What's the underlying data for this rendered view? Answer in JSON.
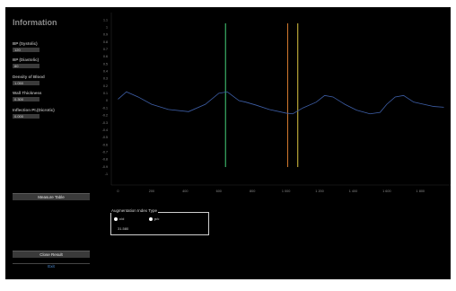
{
  "sidebar": {
    "title": "Information",
    "fields": [
      {
        "label": "BP (Systolic)",
        "value": "120"
      },
      {
        "label": "BP (Diastolic)",
        "value": "80"
      },
      {
        "label": "Density of Blood",
        "value": "1.050"
      },
      {
        "label": "Wall Thickness",
        "value": "0.300"
      },
      {
        "label": "Inflection Pt.(Dicrotic)",
        "value": "0.000"
      }
    ],
    "measure_table_label": "Measure Table",
    "close_result_label": "Close Result",
    "exit_label": "Exit"
  },
  "augmentation": {
    "legend": "Augmentation Index Type",
    "options": [
      "c/d",
      "p/c"
    ],
    "selected": "c/d",
    "value": "31.580"
  },
  "colors": {
    "background": "#000000",
    "waveform": "#3e5fa8",
    "marker_green": "#3fbf6f",
    "marker_orange": "#c8742c",
    "marker_yellow": "#c8b43c",
    "exit_text": "#4d8fd8"
  },
  "chart_data": {
    "type": "line",
    "title": "",
    "xlabel": "",
    "ylabel": "",
    "x_ticks": [
      "0",
      "200",
      "400",
      "600",
      "800",
      "1 000",
      "1 200",
      "1 400",
      "1 600",
      "1 800"
    ],
    "y_ticks": [
      "1.1",
      "1",
      "0.9",
      "0.8",
      "0.7",
      "0.6",
      "0.5",
      "0.4",
      "0.3",
      "0.2",
      "0.1",
      "0",
      "-0.1",
      "-0.2",
      "-0.3",
      "-0.4",
      "-0.5",
      "-0.6",
      "-0.7",
      "-0.8",
      "-0.9",
      "-1"
    ],
    "xlim": [
      -40,
      1980
    ],
    "ylim": [
      -1.15,
      1.2
    ],
    "series": [
      {
        "values": [
          [
            0,
            0.02
          ],
          [
            50,
            0.12
          ],
          [
            120,
            0.05
          ],
          [
            200,
            -0.05
          ],
          [
            300,
            -0.12
          ],
          [
            420,
            -0.15
          ],
          [
            520,
            -0.05
          ],
          [
            600,
            0.1
          ],
          [
            650,
            0.12
          ],
          [
            720,
            0.0
          ],
          [
            760,
            -0.02
          ],
          [
            820,
            -0.06
          ],
          [
            900,
            -0.12
          ],
          [
            1000,
            -0.17
          ],
          [
            1040,
            -0.18
          ],
          [
            1100,
            -0.1
          ],
          [
            1180,
            -0.02
          ],
          [
            1230,
            0.07
          ],
          [
            1280,
            0.05
          ],
          [
            1350,
            -0.05
          ],
          [
            1420,
            -0.13
          ],
          [
            1500,
            -0.18
          ],
          [
            1560,
            -0.16
          ],
          [
            1600,
            -0.05
          ],
          [
            1650,
            0.05
          ],
          [
            1700,
            0.07
          ],
          [
            1760,
            -0.02
          ],
          [
            1820,
            -0.05
          ],
          [
            1880,
            -0.08
          ],
          [
            1940,
            -0.09
          ]
        ]
      }
    ],
    "markers": [
      {
        "x": 640,
        "color": "#3fbf6f"
      },
      {
        "x": 1010,
        "color": "#c8742c"
      },
      {
        "x": 1070,
        "color": "#c8b43c"
      }
    ],
    "grid": false
  }
}
